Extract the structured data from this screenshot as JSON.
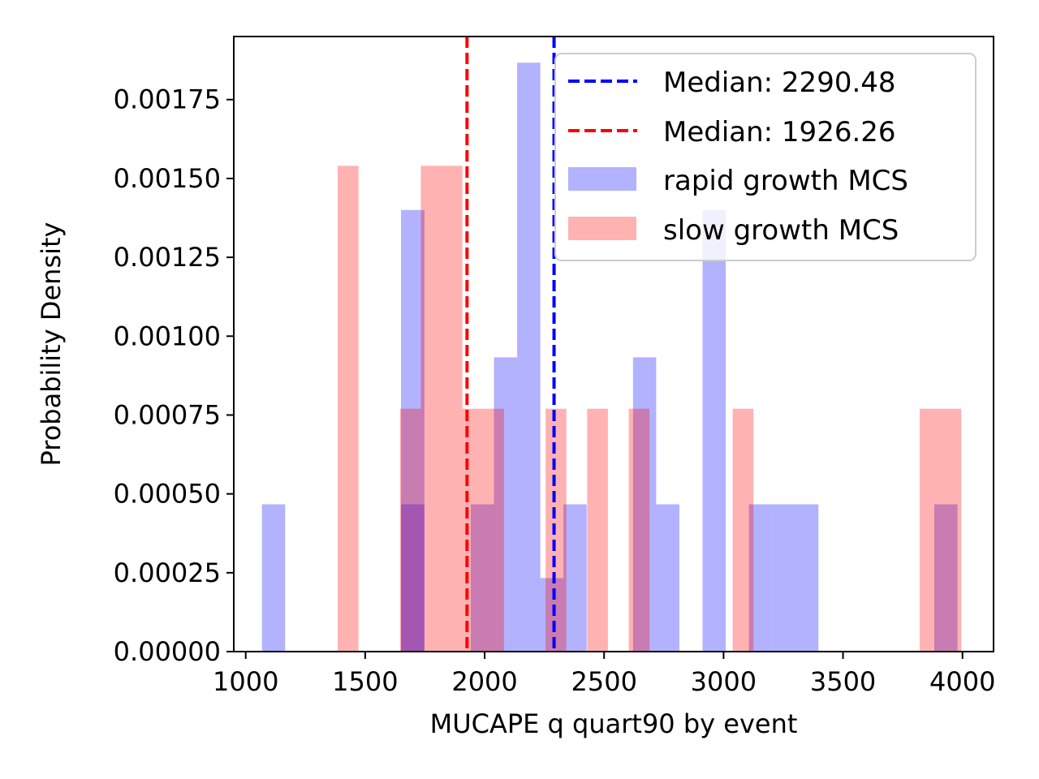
{
  "chart_data": {
    "type": "histogram",
    "xlabel": "MUCAPE q quart90 by event",
    "ylabel": "Probability Density",
    "xlim": [
      950,
      4130
    ],
    "ylim": [
      0,
      0.00195
    ],
    "xticks": [
      1000,
      1500,
      2000,
      2500,
      3000,
      3500,
      4000
    ],
    "xtick_labels": [
      "1000",
      "1500",
      "2000",
      "2500",
      "3000",
      "3500",
      "4000"
    ],
    "yticks": [
      0,
      0.00025,
      0.0005,
      0.00075,
      0.001,
      0.00125,
      0.0015,
      0.00175
    ],
    "ytick_labels": [
      "0.00000",
      "0.00025",
      "0.00050",
      "0.00075",
      "0.00100",
      "0.00125",
      "0.00150",
      "0.00175"
    ],
    "grid": false,
    "legend_position": "top-right",
    "series": [
      {
        "name": "rapid growth MCS",
        "color": "#0000ff",
        "opacity": 0.3,
        "bins": [
          [
            1068,
            1165,
            0.000467
          ],
          [
            1650,
            1748,
            0.0014
          ],
          [
            1650,
            1748,
            0.000467
          ],
          [
            1942,
            2039,
            0.000467
          ],
          [
            2039,
            2136,
            0.000933
          ],
          [
            2136,
            2233,
            0.001867
          ],
          [
            2233,
            2330,
            0.000233
          ],
          [
            2330,
            2427,
            0.000467
          ],
          [
            2621,
            2718,
            0.000933
          ],
          [
            2718,
            2815,
            0.000467
          ],
          [
            2912,
            3009,
            0.0014
          ],
          [
            3106,
            3203,
            0.000467
          ],
          [
            3203,
            3300,
            0.000467
          ],
          [
            3300,
            3397,
            0.000467
          ],
          [
            3882,
            3979,
            0.000467
          ]
        ]
      },
      {
        "name": "slow growth MCS",
        "color": "#ff0000",
        "opacity": 0.3,
        "bins": [
          [
            1385,
            1472,
            0.00154
          ],
          [
            1646,
            1733,
            0.00077
          ],
          [
            1733,
            1820,
            0.00154
          ],
          [
            1820,
            1907,
            0.00154
          ],
          [
            1907,
            1994,
            0.00077
          ],
          [
            1994,
            2081,
            0.00077
          ],
          [
            2255,
            2342,
            0.00077
          ],
          [
            2429,
            2516,
            0.00077
          ],
          [
            2603,
            2690,
            0.00077
          ],
          [
            3038,
            3125,
            0.00077
          ],
          [
            3821,
            3908,
            0.00077
          ],
          [
            3908,
            3995,
            0.00077
          ]
        ]
      }
    ],
    "medians": [
      {
        "label": "Median: 2290.48",
        "value": 2290.48,
        "color": "#0000ff"
      },
      {
        "label": "Median: 1926.26",
        "value": 1926.26,
        "color": "#ff0000"
      }
    ]
  }
}
